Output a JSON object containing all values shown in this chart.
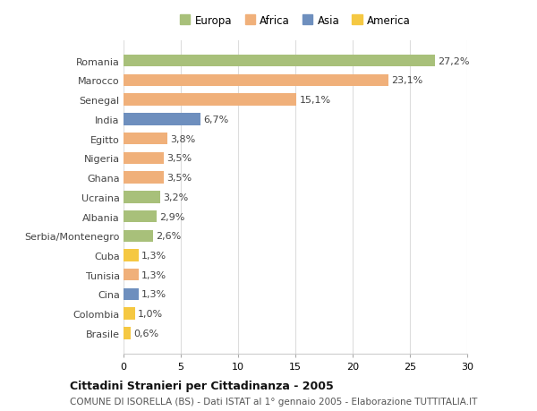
{
  "categories": [
    "Romania",
    "Marocco",
    "Senegal",
    "India",
    "Egitto",
    "Nigeria",
    "Ghana",
    "Ucraina",
    "Albania",
    "Serbia/Montenegro",
    "Cuba",
    "Tunisia",
    "Cina",
    "Colombia",
    "Brasile"
  ],
  "values": [
    27.2,
    23.1,
    15.1,
    6.7,
    3.8,
    3.5,
    3.5,
    3.2,
    2.9,
    2.6,
    1.3,
    1.3,
    1.3,
    1.0,
    0.6
  ],
  "labels": [
    "27,2%",
    "23,1%",
    "15,1%",
    "6,7%",
    "3,8%",
    "3,5%",
    "3,5%",
    "3,2%",
    "2,9%",
    "2,6%",
    "1,3%",
    "1,3%",
    "1,3%",
    "1,0%",
    "0,6%"
  ],
  "colors": [
    "#a8c07a",
    "#f0b07a",
    "#f0b07a",
    "#6e8fbe",
    "#f0b07a",
    "#f0b07a",
    "#f0b07a",
    "#a8c07a",
    "#a8c07a",
    "#a8c07a",
    "#f5c842",
    "#f0b07a",
    "#6e8fbe",
    "#f5c842",
    "#f5c842"
  ],
  "legend_labels": [
    "Europa",
    "Africa",
    "Asia",
    "America"
  ],
  "legend_colors": [
    "#a8c07a",
    "#f0b07a",
    "#6e8fbe",
    "#f5c842"
  ],
  "title": "Cittadini Stranieri per Cittadinanza - 2005",
  "subtitle": "COMUNE DI ISORELLA (BS) - Dati ISTAT al 1° gennaio 2005 - Elaborazione TUTTITALIA.IT",
  "xlim": [
    0,
    30
  ],
  "xticks": [
    0,
    5,
    10,
    15,
    20,
    25,
    30
  ],
  "background_color": "#ffffff",
  "plot_bg_color": "#ffffff",
  "grid_color": "#dddddd",
  "bar_height": 0.62,
  "label_fontsize": 8,
  "ytick_fontsize": 8,
  "xtick_fontsize": 8,
  "title_fontsize": 9,
  "subtitle_fontsize": 7.5,
  "legend_fontsize": 8.5
}
